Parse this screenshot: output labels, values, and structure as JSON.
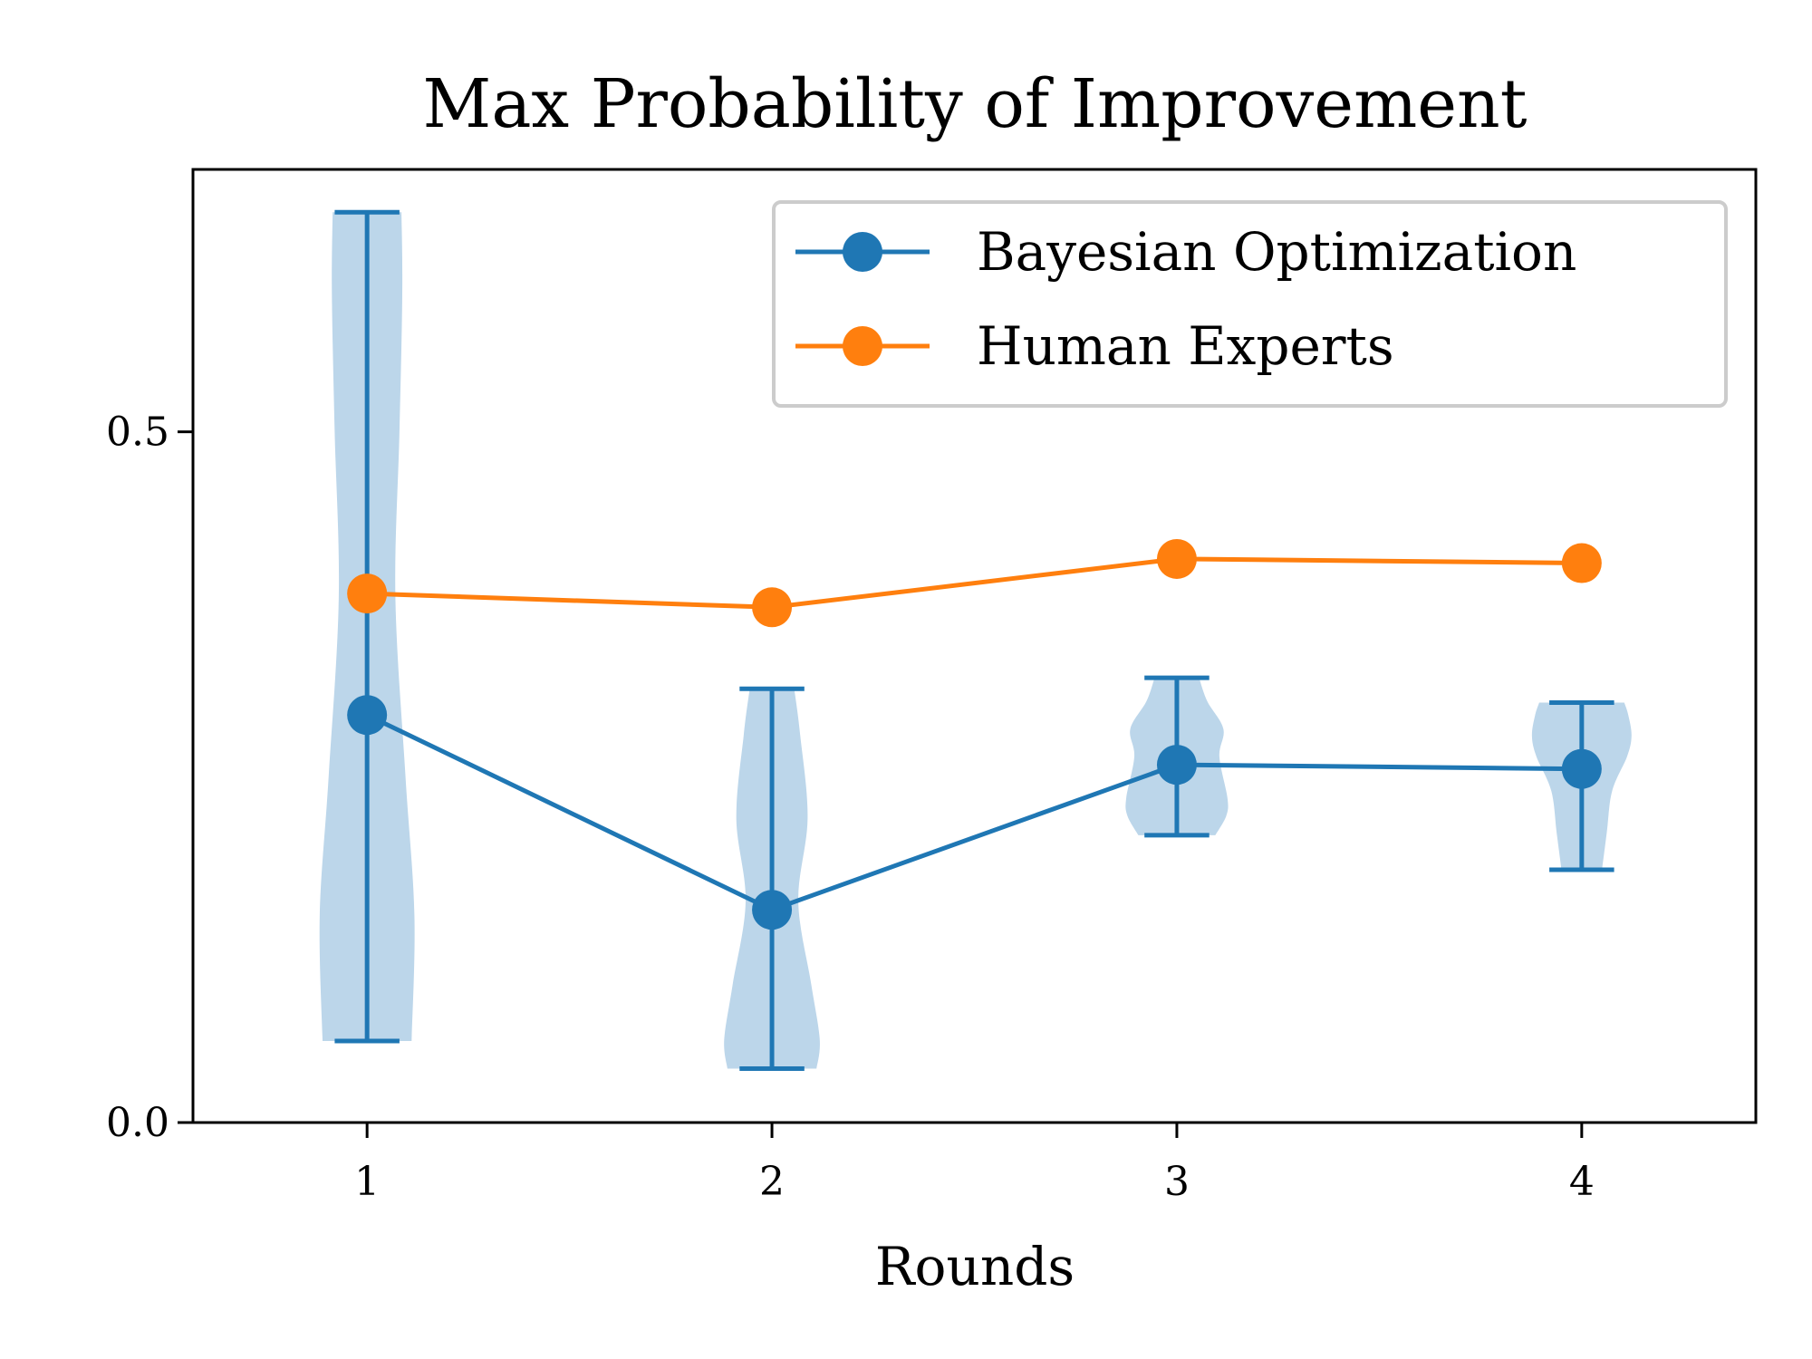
{
  "chart_data": {
    "type": "line",
    "title": "Max Probability of Improvement",
    "xlabel": "Rounds",
    "ylabel": "",
    "xlim": [
      0.57,
      4.43
    ],
    "ylim": [
      0.0,
      0.69
    ],
    "x_ticks": [
      1,
      2,
      3,
      4
    ],
    "x_tick_labels": [
      "1",
      "2",
      "3",
      "4"
    ],
    "y_ticks": [
      0.0,
      0.5
    ],
    "y_tick_labels": [
      "0.0",
      "0.5"
    ],
    "grid": false,
    "legend_position": "upper right",
    "series": [
      {
        "name": "Bayesian Optimization",
        "color": "#1f77b4",
        "x": [
          1,
          2,
          3,
          4
        ],
        "y": [
          0.295,
          0.154,
          0.259,
          0.256
        ]
      },
      {
        "name": "Human Experts",
        "color": "#ff7f0e",
        "x": [
          1,
          2,
          3,
          4
        ],
        "y": [
          0.383,
          0.373,
          0.408,
          0.405
        ]
      }
    ],
    "violins": {
      "series": "Bayesian Optimization",
      "fill_color": "#bcd6ea",
      "line_color": "#1f77b4",
      "items": [
        {
          "x": 1,
          "min": 0.059,
          "max": 0.659,
          "profile": [
            [
              0.059,
              0.11
            ],
            [
              0.15,
              0.117
            ],
            [
              0.25,
              0.095
            ],
            [
              0.38,
              0.07
            ],
            [
              0.5,
              0.08
            ],
            [
              0.6,
              0.087
            ],
            [
              0.659,
              0.085
            ]
          ]
        },
        {
          "x": 2,
          "min": 0.039,
          "max": 0.314,
          "profile": [
            [
              0.039,
              0.11
            ],
            [
              0.06,
              0.118
            ],
            [
              0.1,
              0.097
            ],
            [
              0.16,
              0.065
            ],
            [
              0.22,
              0.088
            ],
            [
              0.28,
              0.07
            ],
            [
              0.314,
              0.055
            ]
          ]
        },
        {
          "x": 3,
          "min": 0.208,
          "max": 0.322,
          "profile": [
            [
              0.208,
              0.095
            ],
            [
              0.222,
              0.122
            ],
            [
              0.235,
              0.125
            ],
            [
              0.265,
              0.105
            ],
            [
              0.285,
              0.115
            ],
            [
              0.305,
              0.075
            ],
            [
              0.322,
              0.055
            ]
          ]
        },
        {
          "x": 4,
          "min": 0.183,
          "max": 0.304,
          "profile": [
            [
              0.183,
              0.05
            ],
            [
              0.21,
              0.062
            ],
            [
              0.24,
              0.075
            ],
            [
              0.265,
              0.112
            ],
            [
              0.28,
              0.123
            ],
            [
              0.295,
              0.115
            ],
            [
              0.304,
              0.105
            ]
          ]
        }
      ]
    }
  }
}
